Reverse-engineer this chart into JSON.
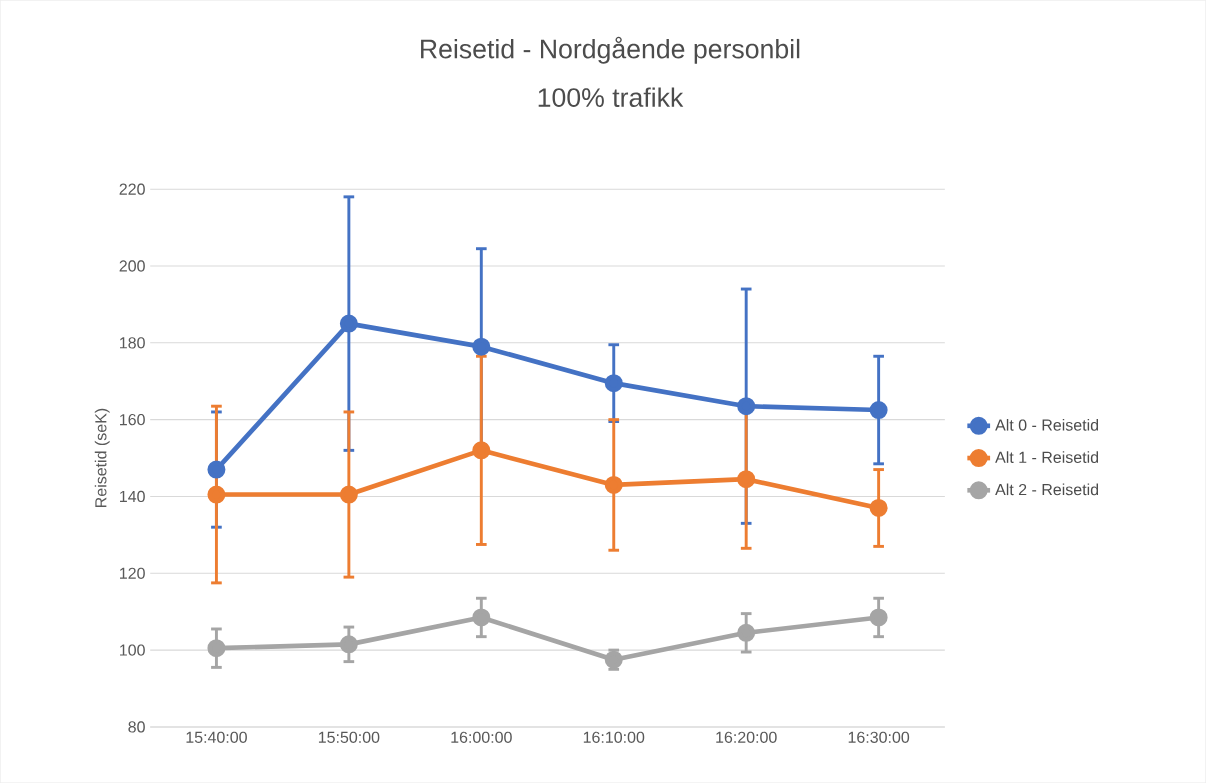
{
  "chart_data": {
    "type": "line",
    "title": "Reisetid - Nordgående personbil",
    "subtitle": "100% trafikk",
    "ylabel": "Reisetid (seK)",
    "categories": [
      "15:40:00",
      "15:50:00",
      "16:00:00",
      "16:10:00",
      "16:20:00",
      "16:30:00"
    ],
    "series": [
      {
        "name": "Alt 0 - Reisetid",
        "color": "#4472c4",
        "values": [
          147,
          185,
          179,
          169.5,
          163.5,
          162.5
        ],
        "errors": [
          15,
          33,
          25.5,
          10,
          30.5,
          14
        ]
      },
      {
        "name": "Alt 1 - Reisetid",
        "color": "#ed7d31",
        "values": [
          140.5,
          140.5,
          152,
          143,
          144.5,
          137
        ],
        "errors": [
          23,
          21.5,
          24.5,
          17,
          18,
          10
        ]
      },
      {
        "name": "Alt 2 - Reisetid",
        "color": "#a5a5a5",
        "values": [
          100.5,
          101.5,
          108.5,
          97.5,
          104.5,
          108.5
        ],
        "errors": [
          5,
          4.5,
          5,
          2.5,
          5,
          5
        ]
      }
    ],
    "ylim": [
      80,
      220
    ],
    "yticks": [
      80,
      100,
      120,
      140,
      160,
      180,
      200,
      220
    ],
    "grid": "y",
    "legend": "right",
    "marker": "circle",
    "line_style": "solid"
  }
}
